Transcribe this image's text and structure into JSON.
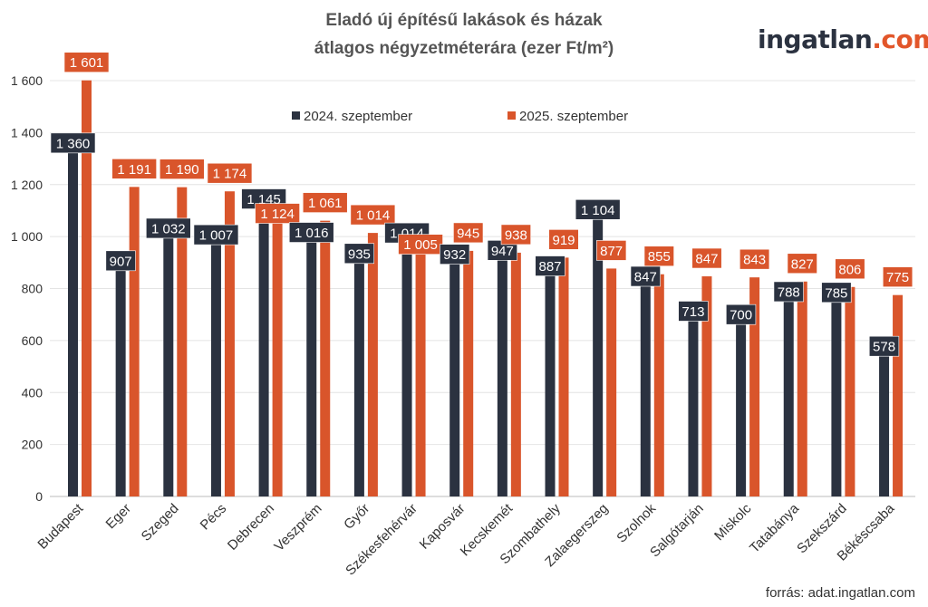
{
  "logo": {
    "main": "ingatlan",
    "accent": ".com"
  },
  "source": "forrás: adat.ingatlan.com",
  "colors": {
    "2024": "#2b3240",
    "2025": "#d9552b"
  },
  "chart_data": {
    "type": "bar",
    "title": [
      "Eladó új építésű lakások és házak",
      "átlagos négyzetméterára (ezer Ft/m²)"
    ],
    "categories": [
      "Budapest",
      "Eger",
      "Szeged",
      "Pécs",
      "Debrecen",
      "Veszprém",
      "Győr",
      "Székesfehérvár",
      "Kaposvár",
      "Kecskemét",
      "Szombathely",
      "Zalaegerszeg",
      "Szolnok",
      "Salgótarján",
      "Miskolc",
      "Tatabánya",
      "Szekszárd",
      "Békéscsaba"
    ],
    "series": [
      {
        "name": "2024. szeptember",
        "values": [
          1360,
          907,
          1032,
          1007,
          1145,
          1016,
          935,
          1014,
          932,
          947,
          887,
          1104,
          847,
          713,
          700,
          788,
          785,
          578
        ]
      },
      {
        "name": "2025. szeptember",
        "values": [
          1601,
          1191,
          1190,
          1174,
          1124,
          1061,
          1014,
          1005,
          945,
          938,
          919,
          877,
          855,
          847,
          843,
          827,
          806,
          775
        ]
      }
    ],
    "ylim": [
      0,
      1600
    ],
    "yticks": [
      "0",
      "200",
      "400",
      "600",
      "800",
      "1 000",
      "1 200",
      "1 400",
      "1 600"
    ],
    "grid": true,
    "legend": "top-center"
  }
}
